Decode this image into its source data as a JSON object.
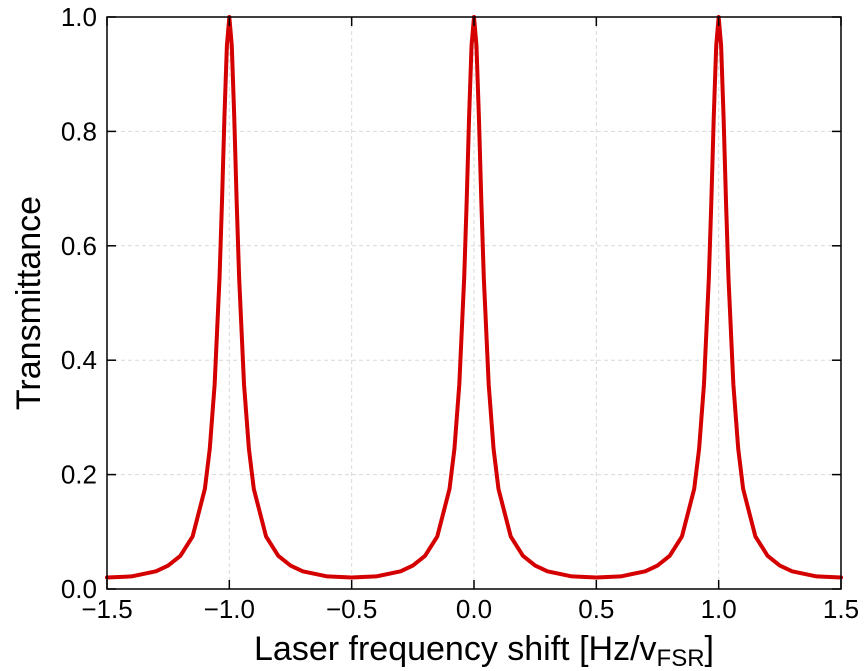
{
  "chart_data": {
    "type": "line",
    "title": "",
    "xlabel": "Laser frequency shift [Hz/v",
    "xlabel_sub": "FSR",
    "xlabel_end": "]",
    "ylabel": "Transmittance",
    "xlim": [
      -1.5,
      1.5
    ],
    "ylim": [
      0.0,
      1.0
    ],
    "x_ticks": [
      -1.5,
      -1.0,
      -0.5,
      0.0,
      0.5,
      1.0,
      1.5
    ],
    "x_tick_labels": [
      "−1.5",
      "−1.0",
      "−0.5",
      "0.0",
      "0.5",
      "1.0",
      "1.5"
    ],
    "y_ticks": [
      0.0,
      0.2,
      0.4,
      0.6,
      0.8,
      1.0
    ],
    "y_tick_labels": [
      "0.0",
      "0.2",
      "0.4",
      "0.6",
      "0.8",
      "1.0"
    ],
    "grid": true,
    "series": [
      {
        "color": "#d40000",
        "x": [
          -1.5,
          -1.4,
          -1.3,
          -1.25,
          -1.2,
          -1.15,
          -1.1,
          -1.08,
          -1.06,
          -1.04,
          -1.03,
          -1.02,
          -1.01,
          -1.0,
          -0.99,
          -0.98,
          -0.97,
          -0.96,
          -0.94,
          -0.92,
          -0.9,
          -0.85,
          -0.8,
          -0.75,
          -0.7,
          -0.6,
          -0.5,
          -0.4,
          -0.3,
          -0.25,
          -0.2,
          -0.15,
          -0.1,
          -0.08,
          -0.06,
          -0.04,
          -0.03,
          -0.02,
          -0.01,
          0.0,
          0.01,
          0.02,
          0.03,
          0.04,
          0.06,
          0.08,
          0.1,
          0.15,
          0.2,
          0.25,
          0.3,
          0.4,
          0.5,
          0.6,
          0.7,
          0.75,
          0.8,
          0.85,
          0.9,
          0.92,
          0.94,
          0.96,
          0.97,
          0.98,
          0.99,
          1.0,
          1.01,
          1.02,
          1.03,
          1.04,
          1.06,
          1.08,
          1.1,
          1.15,
          1.2,
          1.25,
          1.3,
          1.4,
          1.5
        ],
        "y": [
          0.02,
          0.022,
          0.031,
          0.041,
          0.058,
          0.092,
          0.175,
          0.245,
          0.358,
          0.545,
          0.677,
          0.826,
          0.95,
          1.0,
          0.95,
          0.826,
          0.677,
          0.545,
          0.358,
          0.245,
          0.175,
          0.092,
          0.058,
          0.041,
          0.031,
          0.022,
          0.02,
          0.022,
          0.031,
          0.041,
          0.058,
          0.092,
          0.175,
          0.245,
          0.358,
          0.545,
          0.677,
          0.826,
          0.95,
          1.0,
          0.95,
          0.826,
          0.677,
          0.545,
          0.358,
          0.245,
          0.175,
          0.092,
          0.058,
          0.041,
          0.031,
          0.022,
          0.02,
          0.022,
          0.031,
          0.041,
          0.058,
          0.092,
          0.175,
          0.245,
          0.358,
          0.545,
          0.677,
          0.826,
          0.95,
          1.0,
          0.95,
          0.826,
          0.677,
          0.545,
          0.358,
          0.245,
          0.175,
          0.092,
          0.058,
          0.041,
          0.031,
          0.022,
          0.02
        ]
      }
    ]
  }
}
